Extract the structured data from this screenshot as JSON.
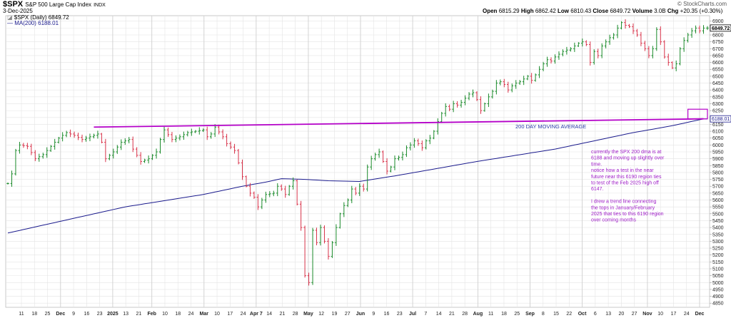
{
  "header": {
    "symbol": "$SPX",
    "name": "S&P 500 Large Cap Index",
    "exchange": "INDX",
    "date": "3-Dec-2025",
    "brand": "© StockCharts.com",
    "ohlc": {
      "open_label": "Open",
      "open": "6815.29",
      "high_label": "High",
      "high": "6862.42",
      "low_label": "Low",
      "low": "6810.43",
      "close_label": "Close",
      "close": "6849.72",
      "volume_label": "Volume",
      "volume": "3.0B",
      "chg_label": "Chg",
      "chg": "+20.35 (+0.30%)"
    },
    "legend": [
      {
        "text": "$SPX (Daily) 6849.72",
        "color": "#000000"
      },
      {
        "text": "MA(200) 6188.01",
        "color": "#1a1a8c"
      }
    ]
  },
  "chart_data": {
    "type": "ohlc",
    "ylim": [
      4820,
      6940
    ],
    "y_ticks": [
      4850,
      4900,
      4950,
      5000,
      5050,
      5100,
      5150,
      5200,
      5250,
      5300,
      5350,
      5400,
      5450,
      5500,
      5550,
      5600,
      5650,
      5700,
      5750,
      5800,
      5850,
      5900,
      5950,
      6000,
      6050,
      6100,
      6150,
      6200,
      6250,
      6300,
      6350,
      6400,
      6450,
      6500,
      6550,
      6600,
      6650,
      6700,
      6750,
      6800,
      6850,
      6900
    ],
    "last_price_label": "6849.72",
    "ma_price_label": "6188.01",
    "x_ticks": [
      "11",
      "18",
      "25",
      "Dec",
      "9",
      "16",
      "23",
      "2025",
      "13",
      "21",
      "Feb",
      "10",
      "18",
      "24",
      "Mar",
      "10",
      "17",
      "24",
      "Apr 7",
      "14",
      "21",
      "28",
      "May",
      "12",
      "19",
      "27",
      "Jun",
      "9",
      "16",
      "23",
      "Jul",
      "7",
      "14",
      "21",
      "28",
      "Aug",
      "11",
      "18",
      "25",
      "Sep",
      "8",
      "15",
      "22",
      "Oct",
      "6",
      "13",
      "20",
      "27",
      "Nov",
      "10",
      "17",
      "24",
      "Dec"
    ],
    "month_ticks": [
      "Dec",
      "2025",
      "Feb",
      "Mar",
      "Apr 7",
      "May",
      "Jun",
      "Jul",
      "Aug",
      "Sep",
      "Oct",
      "Nov",
      "Dec"
    ],
    "price_series": {
      "name": "$SPX",
      "keypoints": [
        [
          0,
          5720
        ],
        [
          1,
          5790
        ],
        [
          2,
          5960
        ],
        [
          3,
          6000
        ],
        [
          5,
          5990
        ],
        [
          7,
          5900
        ],
        [
          9,
          5930
        ],
        [
          11,
          5990
        ],
        [
          13,
          6050
        ],
        [
          15,
          6090
        ],
        [
          17,
          6070
        ],
        [
          19,
          6040
        ],
        [
          21,
          6060
        ],
        [
          23,
          6080
        ],
        [
          24,
          6020
        ],
        [
          25,
          5900
        ],
        [
          27,
          5950
        ],
        [
          29,
          6020
        ],
        [
          31,
          6040
        ],
        [
          32,
          5970
        ],
        [
          34,
          5880
        ],
        [
          36,
          5900
        ],
        [
          38,
          5950
        ],
        [
          39,
          6040
        ],
        [
          40,
          6110
        ],
        [
          42,
          6040
        ],
        [
          44,
          6060
        ],
        [
          46,
          6090
        ],
        [
          48,
          6100
        ],
        [
          50,
          6110
        ],
        [
          51,
          6060
        ],
        [
          52,
          6080
        ],
        [
          53,
          6130
        ],
        [
          55,
          6060
        ],
        [
          56,
          6010
        ],
        [
          58,
          5960
        ],
        [
          59,
          5870
        ],
        [
          60,
          5770
        ],
        [
          61,
          5700
        ],
        [
          62,
          5650
        ],
        [
          63,
          5620
        ],
        [
          64,
          5550
        ],
        [
          65,
          5600
        ],
        [
          66,
          5640
        ],
        [
          68,
          5650
        ],
        [
          69,
          5700
        ],
        [
          70,
          5680
        ],
        [
          71,
          5640
        ],
        [
          72,
          5700
        ],
        [
          73,
          5740
        ],
        [
          74,
          5570
        ],
        [
          75,
          5400
        ],
        [
          76,
          5050
        ],
        [
          77,
          5000
        ],
        [
          78,
          5380
        ],
        [
          79,
          5290
        ],
        [
          80,
          5400
        ],
        [
          81,
          5300
        ],
        [
          82,
          5190
        ],
        [
          83,
          5290
        ],
        [
          84,
          5400
        ],
        [
          85,
          5500
        ],
        [
          86,
          5560
        ],
        [
          87,
          5600
        ],
        [
          88,
          5680
        ],
        [
          89,
          5650
        ],
        [
          90,
          5700
        ],
        [
          91,
          5680
        ],
        [
          92,
          5840
        ],
        [
          93,
          5900
        ],
        [
          94,
          5930
        ],
        [
          95,
          5950
        ],
        [
          96,
          5880
        ],
        [
          97,
          5810
        ],
        [
          98,
          5840
        ],
        [
          99,
          5900
        ],
        [
          100,
          5910
        ],
        [
          101,
          5930
        ],
        [
          102,
          5980
        ],
        [
          103,
          6000
        ],
        [
          104,
          6030
        ],
        [
          105,
          6010
        ],
        [
          106,
          5980
        ],
        [
          107,
          6030
        ],
        [
          108,
          6050
        ],
        [
          109,
          6100
        ],
        [
          110,
          6170
        ],
        [
          111,
          6230
        ],
        [
          112,
          6280
        ],
        [
          113,
          6260
        ],
        [
          114,
          6300
        ],
        [
          115,
          6290
        ],
        [
          116,
          6310
        ],
        [
          117,
          6340
        ],
        [
          118,
          6370
        ],
        [
          119,
          6380
        ],
        [
          120,
          6330
        ],
        [
          121,
          6250
        ],
        [
          122,
          6300
        ],
        [
          123,
          6350
        ],
        [
          124,
          6390
        ],
        [
          125,
          6450
        ],
        [
          126,
          6460
        ],
        [
          127,
          6440
        ],
        [
          128,
          6400
        ],
        [
          129,
          6430
        ],
        [
          130,
          6450
        ],
        [
          131,
          6460
        ],
        [
          132,
          6480
        ],
        [
          133,
          6500
        ],
        [
          134,
          6470
        ],
        [
          135,
          6510
        ],
        [
          136,
          6550
        ],
        [
          137,
          6590
        ],
        [
          138,
          6620
        ],
        [
          139,
          6610
        ],
        [
          140,
          6640
        ],
        [
          141,
          6660
        ],
        [
          142,
          6680
        ],
        [
          143,
          6690
        ],
        [
          144,
          6700
        ],
        [
          145,
          6720
        ],
        [
          146,
          6740
        ],
        [
          147,
          6750
        ],
        [
          148,
          6730
        ],
        [
          149,
          6600
        ],
        [
          150,
          6680
        ],
        [
          151,
          6650
        ],
        [
          152,
          6720
        ],
        [
          153,
          6750
        ],
        [
          154,
          6780
        ],
        [
          155,
          6800
        ],
        [
          156,
          6850
        ],
        [
          157,
          6890
        ],
        [
          158,
          6870
        ],
        [
          159,
          6860
        ],
        [
          160,
          6830
        ],
        [
          161,
          6800
        ],
        [
          162,
          6740
        ],
        [
          163,
          6700
        ],
        [
          164,
          6650
        ],
        [
          165,
          6700
        ],
        [
          166,
          6840
        ],
        [
          167,
          6750
        ],
        [
          168,
          6640
        ],
        [
          169,
          6600
        ],
        [
          170,
          6560
        ],
        [
          171,
          6590
        ],
        [
          172,
          6700
        ],
        [
          173,
          6760
        ],
        [
          174,
          6800
        ],
        [
          175,
          6830
        ],
        [
          176,
          6850
        ],
        [
          177,
          6830
        ],
        [
          178,
          6850
        ]
      ]
    },
    "ma_series": {
      "name": "MA(200)",
      "keypoints": [
        [
          0,
          5360
        ],
        [
          30,
          5550
        ],
        [
          50,
          5640
        ],
        [
          60,
          5700
        ],
        [
          66,
          5730
        ],
        [
          70,
          5755
        ],
        [
          76,
          5750
        ],
        [
          82,
          5740
        ],
        [
          90,
          5735
        ],
        [
          100,
          5780
        ],
        [
          110,
          5830
        ],
        [
          120,
          5880
        ],
        [
          140,
          5970
        ],
        [
          150,
          6030
        ],
        [
          160,
          6090
        ],
        [
          170,
          6140
        ],
        [
          178,
          6190
        ]
      ]
    },
    "trendline": {
      "from": [
        22,
        6130
      ],
      "to": [
        178,
        6190
      ],
      "color": "#b400c8"
    },
    "annotation_box": {
      "from": [
        174,
        6190
      ],
      "to": [
        179,
        6260
      ],
      "color": "#b400c8"
    },
    "annotations": {
      "ma_label": "200 DAY MOVING AVERAGE",
      "note_lines": [
        "currently the SPX 200 dma is at",
        "6188 and moving up slightly over",
        "time.",
        "notice how a test in the near",
        "future near this 6190 region ties",
        "to test of the Feb 2025 high off",
        "6147.",
        "",
        "I drew a trend line connecting",
        "the tops in January/February",
        "2025 that ties to this 6190 region",
        "over coming months"
      ]
    },
    "colors": {
      "up": "#1a8a2a",
      "down": "#d8334a",
      "ma": "#1a1a8c",
      "trend": "#b400c8",
      "note": "#a020c8",
      "label_ma": "#2a3aa8",
      "grid": "#e4e4e4"
    }
  }
}
